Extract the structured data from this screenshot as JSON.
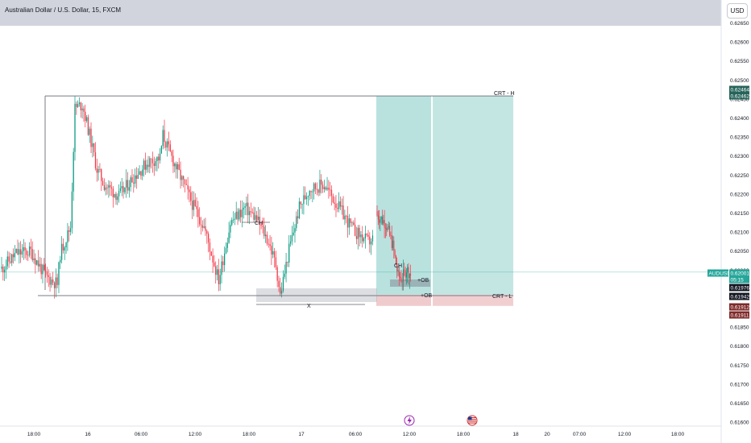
{
  "header": {
    "symbol_title": "Australian Dollar / U.S. Dollar, 15, FXCM",
    "currency_label": "USD"
  },
  "chart_data": {
    "type": "candlestick",
    "symbol": "AUDUSD",
    "y_ticks": [
      "0.62650",
      "0.62600",
      "0.62550",
      "0.62500",
      "0.62450",
      "0.62400",
      "0.62350",
      "0.62300",
      "0.62250",
      "0.62200",
      "0.62150",
      "0.62100",
      "0.62050",
      "0.62000",
      "0.61950",
      "0.61900",
      "0.61850",
      "0.61800",
      "0.61750",
      "0.61700",
      "0.61650",
      "0.61600"
    ],
    "ylim": [
      0.616,
      0.6265
    ],
    "x_ticks": [
      "18:00",
      "16",
      "06:00",
      "12:00",
      "18:00",
      "17",
      "06:00",
      "12:00",
      "18:00",
      "18",
      "20",
      "07:00",
      "12:00",
      "18:00"
    ],
    "price_tags": [
      {
        "label": "0.62464",
        "price": 0.62464,
        "color": "#26645a"
      },
      {
        "label": "0.62462",
        "price": 0.62462,
        "color": "#26645a"
      },
      {
        "label": "AUDUSD",
        "price": 0.62001,
        "color": "#26a69a"
      },
      {
        "label": "0.62001",
        "price": 0.62001,
        "color": "#26a69a"
      },
      {
        "label": "05:15",
        "price": 0.61982,
        "color": "#26a69a"
      },
      {
        "label": "0.61976",
        "price": 0.61962,
        "color": "#131722"
      },
      {
        "label": "0.61942",
        "price": 0.61942,
        "color": "#131722"
      },
      {
        "label": "0.61912",
        "price": 0.6191,
        "color": "#7f2a2a"
      },
      {
        "label": "0.61911",
        "price": 0.6189,
        "color": "#7f2a2a"
      }
    ],
    "annotations": {
      "crt_high": "CRT - H",
      "crt_low": "CRT - L",
      "ch_left": "CH",
      "ch_right": "CH",
      "ob_upper": "+OB",
      "ob_lower": "+OB",
      "x_label": "X"
    },
    "levels": {
      "crt_high": 0.62462,
      "crt_low": 0.61942,
      "current": 0.62001
    },
    "candles": {
      "start": 0.6201,
      "count": 254,
      "seed": 11,
      "anchors": [
        [
          0,
          0.6201
        ],
        [
          10,
          0.6205
        ],
        [
          20,
          0.62055
        ],
        [
          30,
          0.6199
        ],
        [
          38,
          0.6197
        ],
        [
          40,
          0.6205
        ],
        [
          47,
          0.6212
        ],
        [
          50,
          0.6243
        ],
        [
          55,
          0.6244
        ],
        [
          60,
          0.6236
        ],
        [
          65,
          0.6227
        ],
        [
          70,
          0.6223
        ],
        [
          80,
          0.622
        ],
        [
          90,
          0.6225
        ],
        [
          100,
          0.6229
        ],
        [
          108,
          0.623
        ],
        [
          110,
          0.6236
        ],
        [
          115,
          0.6231
        ],
        [
          122,
          0.6225
        ],
        [
          130,
          0.6218
        ],
        [
          138,
          0.6212
        ],
        [
          143,
          0.6205
        ],
        [
          148,
          0.6198
        ],
        [
          156,
          0.6213
        ],
        [
          166,
          0.6217
        ],
        [
          174,
          0.6214
        ],
        [
          182,
          0.6208
        ],
        [
          187,
          0.6202
        ],
        [
          190,
          0.6194
        ],
        [
          196,
          0.6206
        ],
        [
          203,
          0.6217
        ],
        [
          210,
          0.6222
        ],
        [
          220,
          0.6223
        ],
        [
          230,
          0.6217
        ],
        [
          240,
          0.6211
        ],
        [
          250,
          0.6208
        ],
        [
          254,
          0.6209
        ]
      ]
    },
    "candles_right": {
      "start": 0.6216,
      "count": 33,
      "seed": 7,
      "anchors": [
        [
          0,
          0.6215
        ],
        [
          8,
          0.6213
        ],
        [
          15,
          0.6207
        ],
        [
          20,
          0.6199
        ],
        [
          24,
          0.61985
        ],
        [
          28,
          0.6201
        ],
        [
          33,
          0.6199
        ]
      ]
    }
  }
}
